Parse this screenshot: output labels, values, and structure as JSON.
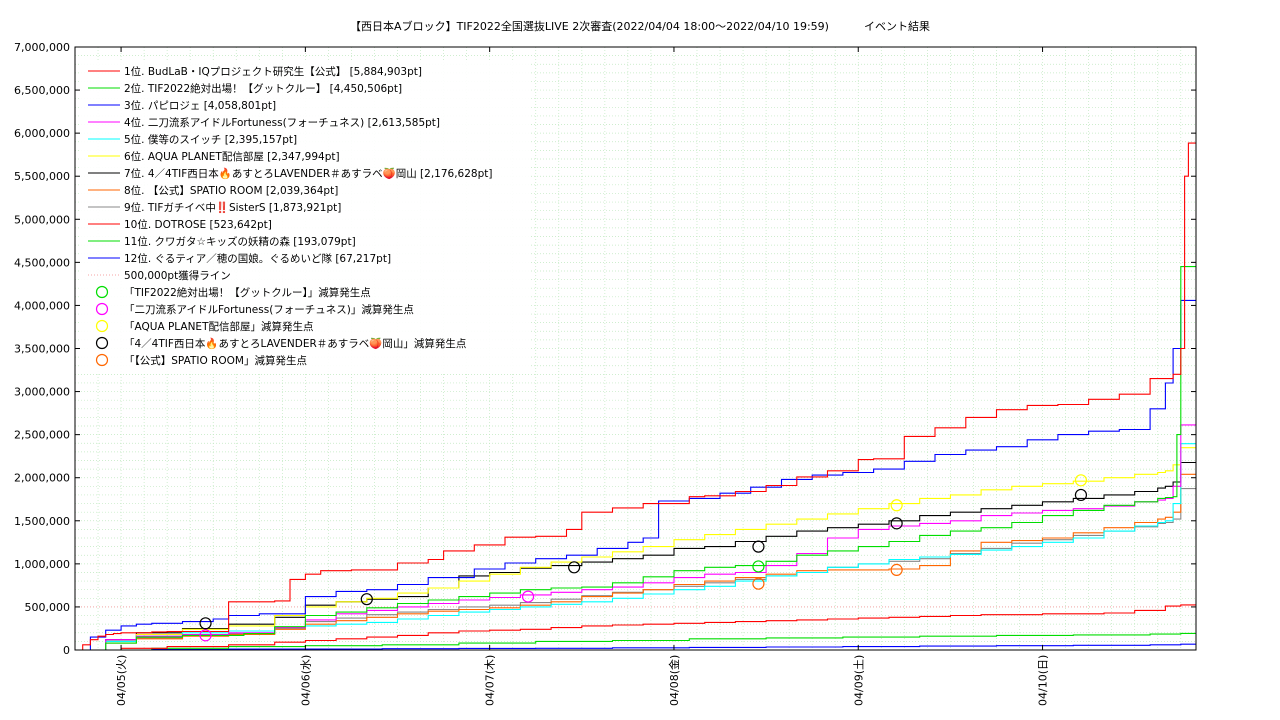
{
  "chart_data": {
    "type": "line",
    "title": "【西日本Aブロック】TIF2022全国選抜LIVE 2次審査(2022/04/04 18:00～2022/04/10 19:59)          イベント結果",
    "xlabel": "",
    "ylabel": "",
    "xlim": [
      "2022-04-04 18:00",
      "2022-04-10 19:59"
    ],
    "ylim": [
      0,
      7000000
    ],
    "y_ticks": [
      0,
      500000,
      1000000,
      1500000,
      2000000,
      2500000,
      3000000,
      3500000,
      4000000,
      4500000,
      5000000,
      5500000,
      6000000,
      6500000,
      7000000
    ],
    "y_tick_labels": [
      "0",
      "500,000",
      "1,000,000",
      "1,500,000",
      "2,000,000",
      "2,500,000",
      "3,000,000",
      "3,500,000",
      "4,000,000",
      "4,500,000",
      "5,000,000",
      "5,500,000",
      "6,000,000",
      "6,500,000",
      "7,000,000"
    ],
    "x_ticks": [
      "2022-04-05 00:00",
      "2022-04-06 00:00",
      "2022-04-07 00:00",
      "2022-04-08 00:00",
      "2022-04-09 00:00",
      "2022-04-10 00:00"
    ],
    "x_tick_labels": [
      "04/05(火)",
      "04/06(水)",
      "04/07(木)",
      "04/08(金)",
      "04/09(土)",
      "04/10(日)"
    ],
    "grid": true,
    "legend_position": "top-left",
    "threshold": {
      "name": "500,000pt獲得ライン",
      "value": 500000,
      "color": "#f4a6a6"
    },
    "series": [
      {
        "name": "1位. BudLaB・IQプロジェクト研究生【公式】 [5,884,903pt]",
        "color": "#ff0000",
        "x": [
          0,
          1,
          2,
          3,
          4,
          5,
          6,
          8,
          10,
          12,
          18,
          20,
          26,
          28,
          30,
          32,
          36,
          38,
          42,
          46,
          48,
          52,
          56,
          60,
          64,
          66,
          70,
          74,
          80,
          82,
          86,
          90,
          94,
          98,
          102,
          104,
          108,
          112,
          116,
          120,
          124,
          128,
          132,
          136,
          140,
          143,
          144,
          144.5,
          145,
          146
        ],
        "y": [
          0,
          60000,
          120000,
          160000,
          180000,
          190000,
          200000,
          200000,
          210000,
          215000,
          215000,
          560000,
          570000,
          820000,
          880000,
          920000,
          930000,
          930000,
          1010000,
          1050000,
          1150000,
          1220000,
          1310000,
          1320000,
          1400000,
          1600000,
          1650000,
          1700000,
          1780000,
          1790000,
          1840000,
          1910000,
          2010000,
          2080000,
          2210000,
          2220000,
          2480000,
          2580000,
          2700000,
          2790000,
          2840000,
          2850000,
          2910000,
          2970000,
          3150000,
          3200000,
          3500000,
          5500000,
          5884903,
          5884903
        ]
      },
      {
        "name": "2位. TIF2022絶対出場！【グットクルー】 [4,450,506pt]",
        "color": "#00dd00",
        "x": [
          0,
          4,
          8,
          14,
          22,
          26,
          30,
          34,
          38,
          42,
          46,
          50,
          54,
          58,
          62,
          66,
          70,
          74,
          78,
          82,
          86,
          90,
          94,
          98,
          102,
          106,
          110,
          114,
          118,
          122,
          126,
          130,
          134,
          138,
          141,
          142,
          143,
          143.5,
          144,
          146
        ],
        "y": [
          0,
          80000,
          150000,
          170000,
          190000,
          270000,
          400000,
          440000,
          490000,
          540000,
          580000,
          620000,
          660000,
          700000,
          720000,
          730000,
          780000,
          850000,
          920000,
          960000,
          980000,
          1030000,
          1100000,
          1150000,
          1200000,
          1260000,
          1330000,
          1380000,
          1420000,
          1480000,
          1560000,
          1620000,
          1680000,
          1720000,
          1760000,
          1770000,
          1780000,
          2500000,
          4450506,
          4450506
        ]
      },
      {
        "name": "3位. パピロジェ [4,058,801pt]",
        "color": "#0000ff",
        "x": [
          0,
          2,
          4,
          6,
          8,
          10,
          14,
          18,
          20,
          24,
          30,
          34,
          38,
          42,
          46,
          52,
          56,
          60,
          64,
          68,
          72,
          74,
          76,
          80,
          84,
          88,
          92,
          96,
          100,
          104,
          108,
          112,
          116,
          120,
          124,
          128,
          132,
          136,
          140,
          142,
          143,
          144,
          146
        ],
        "y": [
          0,
          150000,
          230000,
          280000,
          300000,
          310000,
          330000,
          360000,
          400000,
          420000,
          620000,
          680000,
          700000,
          760000,
          840000,
          940000,
          1010000,
          1060000,
          1100000,
          1180000,
          1250000,
          1300000,
          1730000,
          1760000,
          1820000,
          1890000,
          1980000,
          2030000,
          2060000,
          2100000,
          2190000,
          2270000,
          2320000,
          2360000,
          2440000,
          2500000,
          2540000,
          2560000,
          2800000,
          3100000,
          3500000,
          4058801,
          4058801
        ]
      },
      {
        "name": "4位. 二刀流系アイドルFortuness(フォーチュネス) [2,613,585pt]",
        "color": "#ff00ff",
        "x": [
          0,
          4,
          8,
          14,
          20,
          26,
          30,
          34,
          38,
          42,
          46,
          50,
          54,
          58,
          62,
          66,
          70,
          74,
          78,
          82,
          86,
          90,
          94,
          98,
          102,
          106,
          110,
          114,
          118,
          122,
          126,
          130,
          134,
          138,
          141,
          142,
          143,
          144,
          146
        ],
        "y": [
          0,
          120000,
          160000,
          180000,
          200000,
          260000,
          350000,
          420000,
          460000,
          500000,
          540000,
          580000,
          610000,
          640000,
          670000,
          700000,
          730000,
          780000,
          840000,
          880000,
          900000,
          980000,
          1120000,
          1300000,
          1400000,
          1440000,
          1470000,
          1500000,
          1560000,
          1590000,
          1620000,
          1640000,
          1670000,
          1720000,
          1740000,
          1760000,
          1900000,
          2613585,
          2613585
        ]
      },
      {
        "name": "5位. 僕等のスイッチ [2,395,157pt]",
        "color": "#00ffff",
        "x": [
          0,
          4,
          8,
          14,
          20,
          26,
          30,
          34,
          38,
          42,
          46,
          50,
          54,
          58,
          62,
          66,
          70,
          74,
          78,
          82,
          86,
          90,
          94,
          98,
          102,
          106,
          110,
          114,
          118,
          122,
          126,
          130,
          134,
          138,
          141,
          142,
          143,
          144,
          146
        ],
        "y": [
          0,
          100000,
          160000,
          200000,
          220000,
          260000,
          280000,
          300000,
          320000,
          360000,
          400000,
          440000,
          470000,
          500000,
          530000,
          560000,
          600000,
          650000,
          700000,
          740000,
          800000,
          860000,
          900000,
          960000,
          1000000,
          1050000,
          1080000,
          1110000,
          1160000,
          1200000,
          1250000,
          1300000,
          1380000,
          1440000,
          1480000,
          1500000,
          1700000,
          2395157,
          2395157
        ]
      },
      {
        "name": "6位. AQUA PLANET配信部屋 [2,347,994pt]",
        "color": "#ffff00",
        "x": [
          0,
          4,
          8,
          14,
          20,
          26,
          30,
          34,
          38,
          42,
          46,
          50,
          54,
          58,
          62,
          66,
          70,
          74,
          78,
          82,
          86,
          90,
          94,
          98,
          102,
          106,
          110,
          114,
          118,
          122,
          126,
          130,
          134,
          138,
          141,
          142,
          143,
          144,
          146
        ],
        "y": [
          0,
          100000,
          180000,
          240000,
          280000,
          400000,
          500000,
          560000,
          600000,
          660000,
          720000,
          800000,
          880000,
          960000,
          1020000,
          1080000,
          1140000,
          1200000,
          1280000,
          1340000,
          1400000,
          1460000,
          1520000,
          1580000,
          1640000,
          1700000,
          1760000,
          1800000,
          1860000,
          1900000,
          1930000,
          1960000,
          2000000,
          2040000,
          2060000,
          2080000,
          2150000,
          2347994,
          2347994
        ]
      },
      {
        "name": "7位. 4／4TIF西日本🔥あすとろLAVENDER＃あすラベ🍑岡山 [2,176,628pt]",
        "color": "#000000",
        "x": [
          0,
          4,
          8,
          14,
          20,
          26,
          30,
          34,
          38,
          42,
          46,
          50,
          54,
          58,
          62,
          66,
          70,
          74,
          78,
          82,
          86,
          90,
          94,
          98,
          102,
          106,
          110,
          114,
          118,
          122,
          126,
          130,
          134,
          138,
          141,
          142,
          143,
          144,
          146
        ],
        "y": [
          0,
          120000,
          200000,
          250000,
          300000,
          380000,
          520000,
          560000,
          590000,
          620000,
          720000,
          860000,
          900000,
          950000,
          980000,
          1020000,
          1060000,
          1100000,
          1180000,
          1200000,
          1260000,
          1320000,
          1380000,
          1420000,
          1460000,
          1500000,
          1560000,
          1600000,
          1640000,
          1680000,
          1720000,
          1760000,
          1800000,
          1840000,
          1880000,
          1900000,
          1950000,
          2176628,
          2176628
        ]
      },
      {
        "name": "8位. 【公式】SPATIO ROOM [2,039,364pt]",
        "color": "#ff6600",
        "x": [
          0,
          4,
          8,
          14,
          20,
          26,
          30,
          34,
          38,
          42,
          46,
          50,
          54,
          58,
          62,
          66,
          70,
          74,
          78,
          82,
          86,
          90,
          94,
          98,
          102,
          106,
          110,
          114,
          118,
          122,
          126,
          130,
          134,
          138,
          141,
          142,
          143,
          144,
          146
        ],
        "y": [
          0,
          80000,
          130000,
          160000,
          180000,
          240000,
          300000,
          340000,
          380000,
          420000,
          450000,
          470000,
          490000,
          520000,
          560000,
          620000,
          660000,
          700000,
          760000,
          800000,
          840000,
          880000,
          920000,
          930000,
          930000,
          940000,
          980000,
          1150000,
          1250000,
          1270000,
          1300000,
          1360000,
          1420000,
          1480000,
          1520000,
          1540000,
          1600000,
          2039364,
          2039364
        ]
      },
      {
        "name": "9位. TIFガチイベ中‼️SisterS [1,873,921pt]",
        "color": "#888888",
        "x": [
          0,
          4,
          8,
          14,
          20,
          26,
          30,
          34,
          38,
          42,
          46,
          50,
          54,
          58,
          62,
          66,
          70,
          74,
          78,
          82,
          86,
          90,
          94,
          98,
          102,
          106,
          110,
          114,
          118,
          122,
          126,
          130,
          134,
          138,
          141,
          142,
          143,
          144,
          146
        ],
        "y": [
          0,
          100000,
          140000,
          170000,
          190000,
          250000,
          330000,
          370000,
          410000,
          440000,
          470000,
          500000,
          520000,
          550000,
          590000,
          630000,
          670000,
          700000,
          740000,
          780000,
          820000,
          860000,
          900000,
          960000,
          1000000,
          1030000,
          1060000,
          1120000,
          1180000,
          1240000,
          1280000,
          1330000,
          1380000,
          1430000,
          1470000,
          1480000,
          1520000,
          1873921,
          1873921
        ]
      },
      {
        "name": "10位. DOTROSE [523,642pt]",
        "color": "#ff0000",
        "x": [
          0,
          6,
          12,
          20,
          26,
          30,
          34,
          38,
          42,
          46,
          50,
          54,
          58,
          62,
          66,
          70,
          74,
          78,
          82,
          86,
          90,
          94,
          98,
          102,
          106,
          110,
          114,
          118,
          122,
          126,
          130,
          134,
          138,
          142,
          144,
          146
        ],
        "y": [
          0,
          20000,
          40000,
          60000,
          90000,
          110000,
          130000,
          150000,
          170000,
          200000,
          220000,
          230000,
          240000,
          260000,
          280000,
          290000,
          300000,
          310000,
          320000,
          330000,
          340000,
          350000,
          360000,
          370000,
          380000,
          390000,
          400000,
          410000,
          410000,
          420000,
          420000,
          430000,
          460000,
          510000,
          523642,
          523642
        ]
      },
      {
        "name": "11位. クワガタ☆キッズの妖精の森 [193,079pt]",
        "color": "#00dd00",
        "x": [
          0,
          10,
          20,
          30,
          40,
          50,
          60,
          70,
          80,
          90,
          100,
          110,
          120,
          130,
          140,
          144,
          146
        ],
        "y": [
          0,
          20000,
          40000,
          50000,
          60000,
          80000,
          100000,
          110000,
          130000,
          140000,
          150000,
          160000,
          170000,
          175000,
          185000,
          193079,
          193079
        ]
      },
      {
        "name": "12位. ぐるティア／穂の国娘。ぐるめいど隊 [67,217pt]",
        "color": "#0000ff",
        "x": [
          0,
          10,
          20,
          30,
          40,
          50,
          60,
          70,
          80,
          90,
          100,
          110,
          120,
          130,
          140,
          144,
          146
        ],
        "y": [
          0,
          5000,
          10000,
          12000,
          15000,
          18000,
          20000,
          25000,
          30000,
          35000,
          40000,
          45000,
          50000,
          55000,
          60000,
          67217,
          67217
        ]
      }
    ],
    "markers": [
      {
        "name": "「TIF2022絶対出場！【グットクルー】」減算発生点",
        "color": "#00dd00",
        "points": [
          {
            "x": 89,
            "y": 970000
          }
        ]
      },
      {
        "name": "「二刀流系アイドルFortuness(フォーチュネス)」減算発生点",
        "color": "#ff00ff",
        "points": [
          {
            "x": 17,
            "y": 170000
          },
          {
            "x": 59,
            "y": 620000
          }
        ]
      },
      {
        "name": "「AQUA PLANET配信部屋」減算発生点",
        "color": "#ffff00",
        "points": [
          {
            "x": 107,
            "y": 1680000
          },
          {
            "x": 131,
            "y": 1970000
          }
        ]
      },
      {
        "name": "「4／4TIF西日本🔥あすとろLAVENDER＃あすラベ🍑岡山」減算発生点",
        "color": "#000000",
        "points": [
          {
            "x": 17,
            "y": 310000
          },
          {
            "x": 38,
            "y": 590000
          },
          {
            "x": 65,
            "y": 960000
          },
          {
            "x": 89,
            "y": 1200000
          },
          {
            "x": 107,
            "y": 1470000
          },
          {
            "x": 131,
            "y": 1800000
          }
        ]
      },
      {
        "name": "「【公式】SPATIO ROOM」減算発生点",
        "color": "#ff6600",
        "points": [
          {
            "x": 89,
            "y": 770000
          },
          {
            "x": 107,
            "y": 930000
          }
        ]
      }
    ]
  }
}
